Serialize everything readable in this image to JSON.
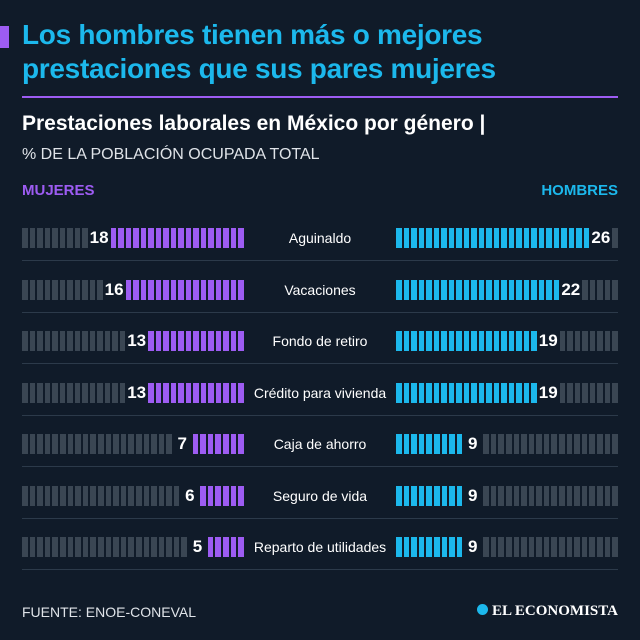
{
  "header": {
    "title": "Los hombres tienen más o mejores prestaciones que sus pares mujeres",
    "subtitle": "Prestaciones laborales en México por género |",
    "unit": "% DE LA POBLACIÓN OCUPADA TOTAL"
  },
  "chart_data": {
    "type": "bar",
    "title": "Prestaciones laborales en México por género",
    "ylabel": "% de la población ocupada total",
    "categories": [
      "Aguinaldo",
      "Vacaciones",
      "Fondo de retiro",
      "Crédito para vivienda",
      "Caja de ahorro",
      "Seguro de vida",
      "Reparto de utilidades"
    ],
    "series": [
      {
        "name": "MUJERES",
        "color": "#9d5cf2",
        "values": [
          18,
          16,
          13,
          13,
          7,
          6,
          5
        ]
      },
      {
        "name": "HOMBRES",
        "color": "#1cb8ec",
        "values": [
          26,
          22,
          19,
          19,
          9,
          9,
          9
        ]
      }
    ],
    "xlim": [
      0,
      30
    ]
  },
  "footer": {
    "source": "FUENTE: ENOE-CONEVAL",
    "logo": "EL ECONOMISTA"
  }
}
